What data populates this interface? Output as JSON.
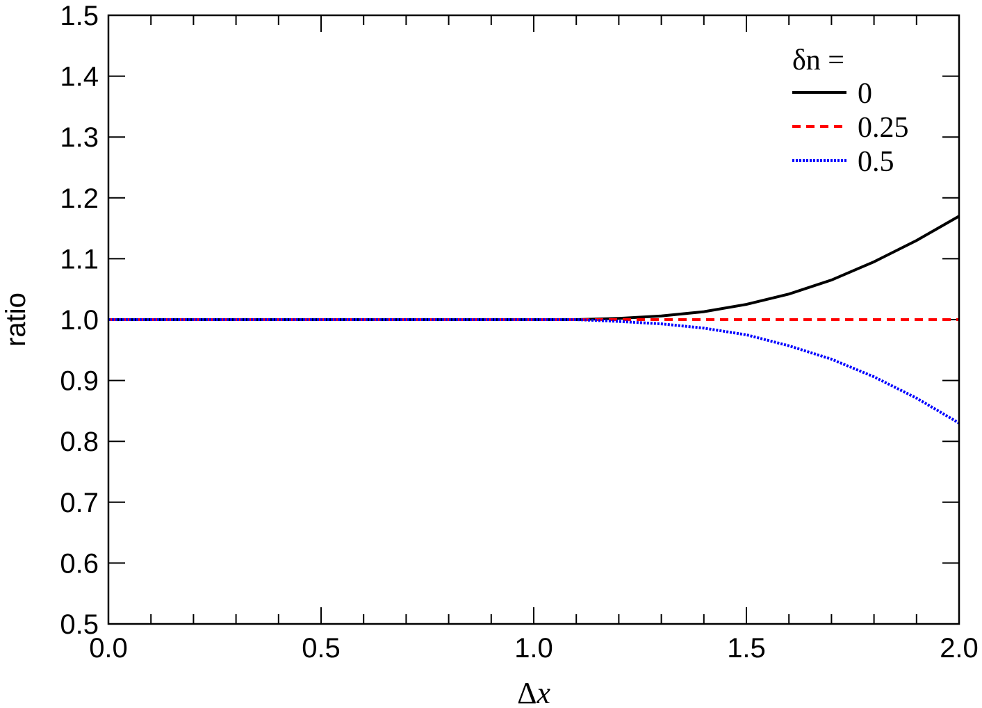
{
  "chart_data": {
    "type": "line",
    "xlabel_symbol": "Δ",
    "xlabel_var": "x",
    "ylabel": "ratio",
    "xlim": [
      0.0,
      2.0
    ],
    "ylim": [
      0.5,
      1.5
    ],
    "x_ticks": [
      "0.0",
      "0.5",
      "1.0",
      "1.5",
      "2.0"
    ],
    "y_ticks": [
      "0.5",
      "0.6",
      "0.7",
      "0.8",
      "0.9",
      "1.0",
      "1.1",
      "1.2",
      "1.3",
      "1.4",
      "1.5"
    ],
    "grid": false,
    "legend": {
      "title": "δn =",
      "placement": "top-right"
    },
    "x": [
      0.0,
      0.1,
      0.2,
      0.3,
      0.4,
      0.5,
      0.6,
      0.7,
      0.8,
      0.9,
      1.0,
      1.1,
      1.2,
      1.3,
      1.4,
      1.5,
      1.6,
      1.7,
      1.8,
      1.9,
      2.0
    ],
    "series": [
      {
        "name": "0",
        "color": "#000000",
        "style": "solid",
        "values": [
          1.0,
          1.0,
          1.0,
          1.0,
          1.0,
          1.0,
          1.0,
          1.0,
          1.0,
          1.0,
          1.0,
          1.0,
          1.002,
          1.006,
          1.013,
          1.025,
          1.042,
          1.065,
          1.095,
          1.13,
          1.17
        ]
      },
      {
        "name": "0.25",
        "color": "#ff0000",
        "style": "dashed",
        "values": [
          1.0,
          1.0,
          1.0,
          1.0,
          1.0,
          1.0,
          1.0,
          1.0,
          1.0,
          1.0,
          1.0,
          1.0,
          1.0,
          1.0,
          1.0,
          1.0,
          1.0,
          1.0,
          1.0,
          1.0,
          1.0
        ]
      },
      {
        "name": "0.5",
        "color": "#0000ff",
        "style": "dotted",
        "values": [
          1.0,
          1.0,
          1.0,
          1.0,
          1.0,
          1.0,
          1.0,
          1.0,
          1.0,
          1.0,
          1.0,
          1.0,
          0.997,
          0.993,
          0.986,
          0.975,
          0.957,
          0.935,
          0.906,
          0.871,
          0.83
        ]
      }
    ]
  }
}
